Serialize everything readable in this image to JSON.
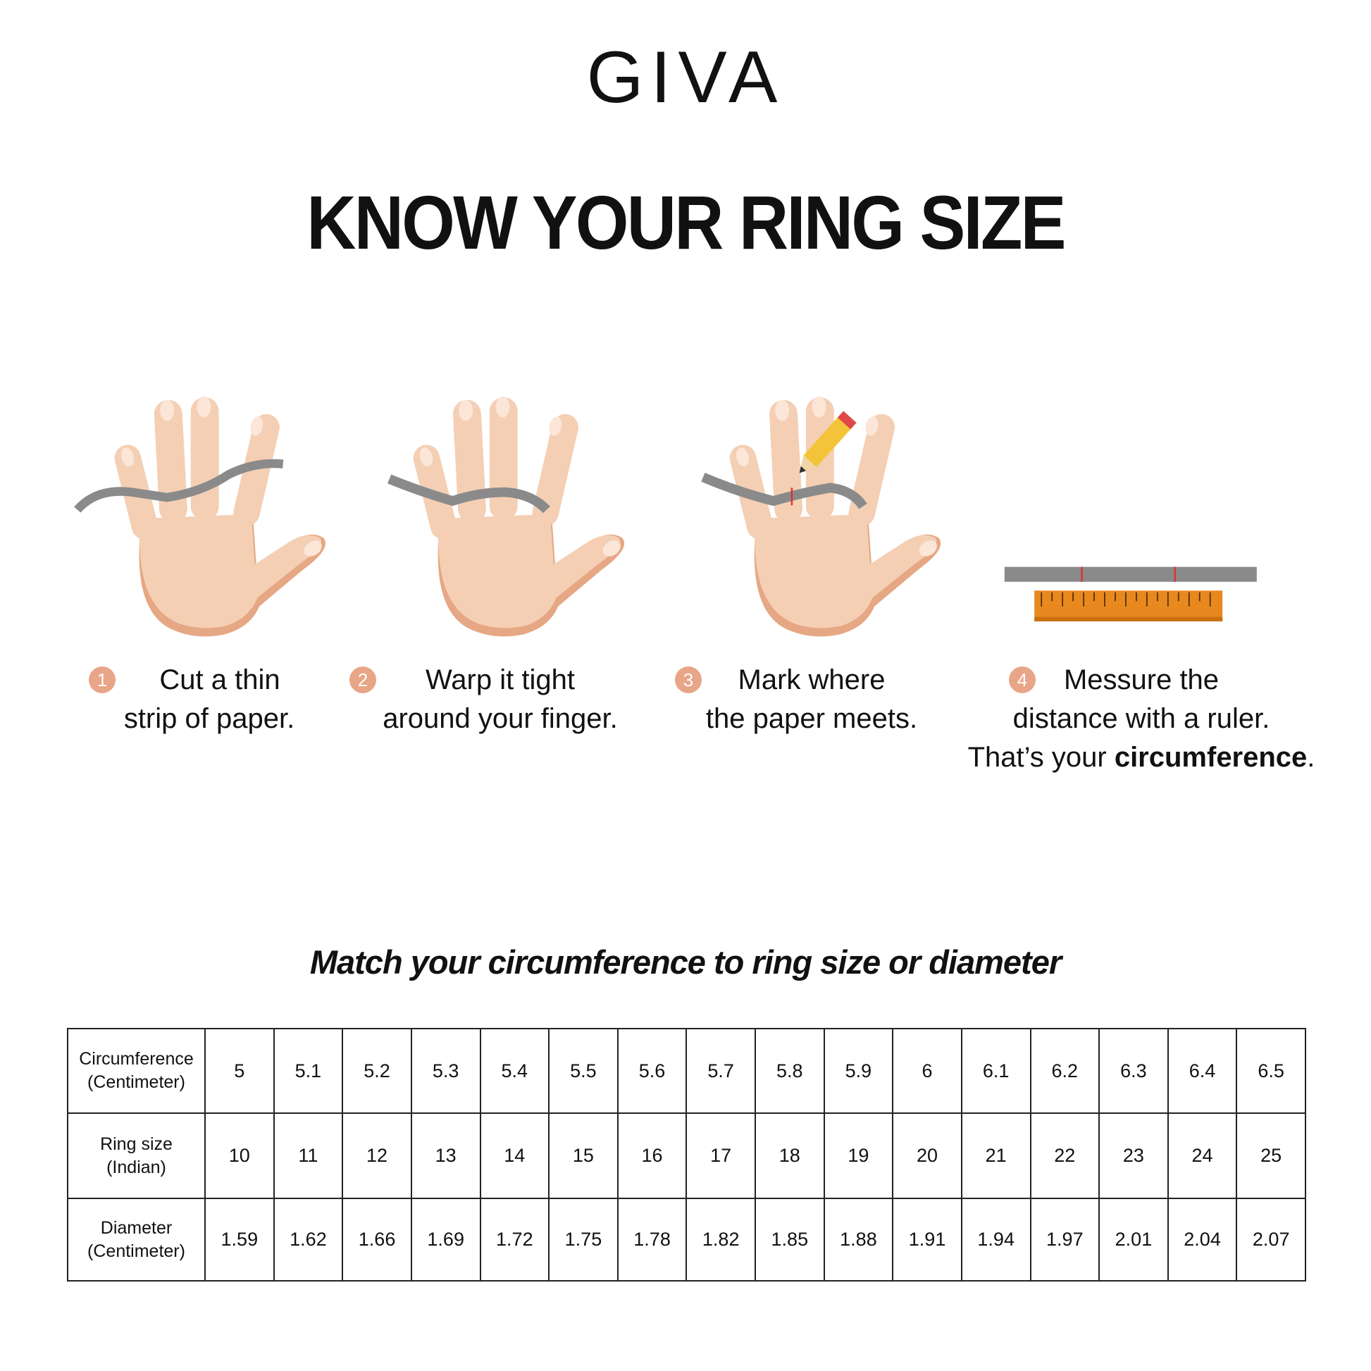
{
  "brand": {
    "logo_text": "GIVA"
  },
  "title": "KNOW YOUR RING SIZE",
  "colors": {
    "step_badge": "#e8a587",
    "skin": "#f4cfb4",
    "skin_shadow": "#e6a784",
    "paper_strip": "#8a8a8a",
    "ruler": "#e8891f"
  },
  "steps": [
    {
      "number": "1",
      "line1": "Cut a thin",
      "line2": "strip of paper.",
      "icon": "hand-paper-strip-icon"
    },
    {
      "number": "2",
      "line1": "Warp it tight",
      "line2": "around your finger.",
      "icon": "hand-wrap-icon"
    },
    {
      "number": "3",
      "line1": "Mark where",
      "line2": "the paper meets.",
      "icon": "hand-pencil-mark-icon"
    },
    {
      "number": "4",
      "line1": "Messure the",
      "line2": "distance with a ruler.",
      "line3_pre": "That’s your ",
      "line3_bold": "circumference",
      "line3_post": ".",
      "icon": "ruler-icon"
    }
  ],
  "subtitle": "Match your circumference to ring size or diameter",
  "table": {
    "rows": [
      {
        "header_line1": "Circumference",
        "header_line2": "(Centimeter)",
        "values": [
          "5",
          "5.1",
          "5.2",
          "5.3",
          "5.4",
          "5.5",
          "5.6",
          "5.7",
          "5.8",
          "5.9",
          "6",
          "6.1",
          "6.2",
          "6.3",
          "6.4",
          "6.5"
        ]
      },
      {
        "header_line1": "Ring size",
        "header_line2": "(Indian)",
        "values": [
          "10",
          "11",
          "12",
          "13",
          "14",
          "15",
          "16",
          "17",
          "18",
          "19",
          "20",
          "21",
          "22",
          "23",
          "24",
          "25"
        ]
      },
      {
        "header_line1": "Diameter",
        "header_line2": "(Centimeter)",
        "values": [
          "1.59",
          "1.62",
          "1.66",
          "1.69",
          "1.72",
          "1.75",
          "1.78",
          "1.82",
          "1.85",
          "1.88",
          "1.91",
          "1.94",
          "1.97",
          "2.01",
          "2.04",
          "2.07"
        ]
      }
    ]
  }
}
